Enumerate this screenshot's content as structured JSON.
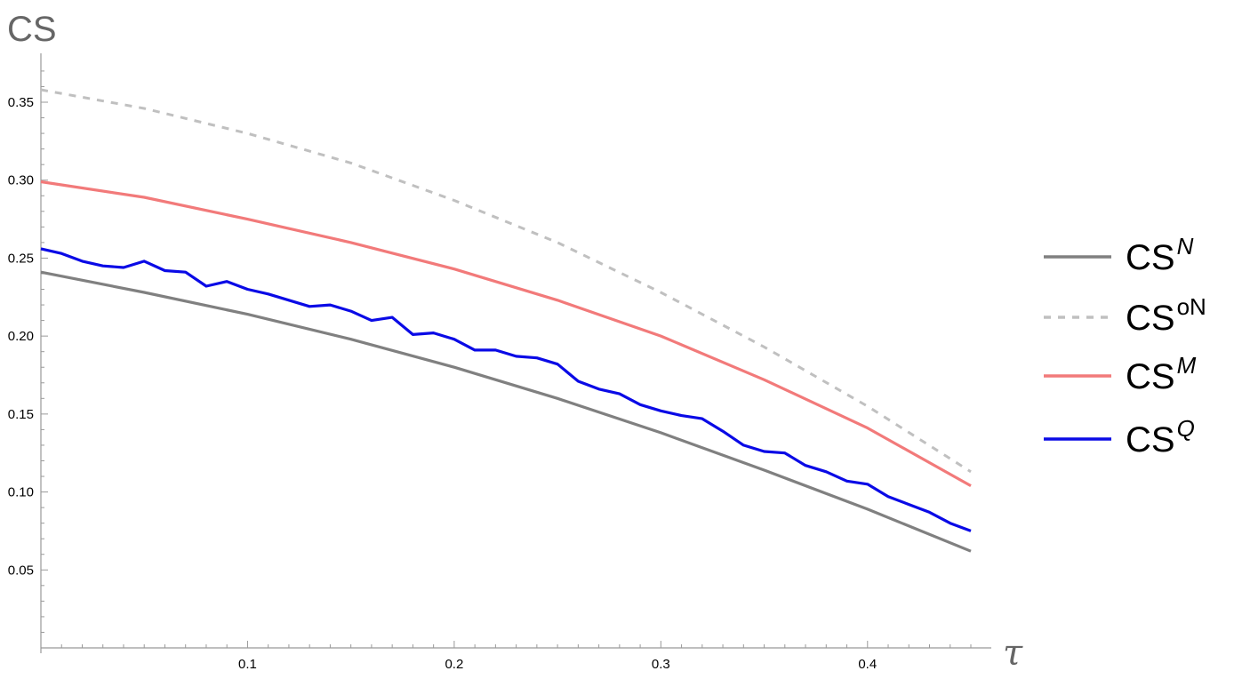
{
  "chart_data": {
    "type": "line",
    "ylabel": "CS",
    "xlabel": "τ",
    "xlim": [
      0,
      0.455
    ],
    "ylim": [
      0,
      0.375
    ],
    "x_ticks": [
      0.1,
      0.2,
      0.3,
      0.4
    ],
    "x_tick_labels": [
      "0.1",
      "0.2",
      "0.3",
      "0.4"
    ],
    "y_ticks": [
      0.05,
      0.1,
      0.15,
      0.2,
      0.25,
      0.3,
      0.35
    ],
    "y_tick_labels": [
      "0.05",
      "0.10",
      "0.15",
      "0.20",
      "0.25",
      "0.30",
      "0.35"
    ],
    "legend_position": "right",
    "grid": false,
    "series": [
      {
        "name": "CS",
        "sup": "N",
        "sup_italic": true,
        "color": "#808080",
        "dash": "none",
        "x": [
          0,
          0.05,
          0.1,
          0.15,
          0.2,
          0.25,
          0.3,
          0.35,
          0.4,
          0.45
        ],
        "y": [
          0.241,
          0.228,
          0.214,
          0.198,
          0.18,
          0.16,
          0.138,
          0.114,
          0.089,
          0.062
        ]
      },
      {
        "name": "CS",
        "sup": "oN",
        "sup_italic": false,
        "color": "#c0c0c0",
        "dash": "8,8",
        "x": [
          0,
          0.05,
          0.1,
          0.15,
          0.2,
          0.25,
          0.3,
          0.35,
          0.4,
          0.45
        ],
        "y": [
          0.358,
          0.346,
          0.33,
          0.311,
          0.287,
          0.26,
          0.228,
          0.193,
          0.155,
          0.113
        ]
      },
      {
        "name": "CS",
        "sup": "M",
        "sup_italic": true,
        "color": "#f27a7a",
        "dash": "none",
        "x": [
          0,
          0.05,
          0.1,
          0.15,
          0.2,
          0.25,
          0.3,
          0.35,
          0.4,
          0.45
        ],
        "y": [
          0.299,
          0.289,
          0.275,
          0.26,
          0.243,
          0.223,
          0.2,
          0.172,
          0.141,
          0.104
        ]
      },
      {
        "name": "CS",
        "sup": "Q",
        "sup_italic": true,
        "color": "#0a0ae6",
        "dash": "none",
        "x": [
          0,
          0.01,
          0.02,
          0.03,
          0.04,
          0.05,
          0.06,
          0.07,
          0.08,
          0.09,
          0.1,
          0.11,
          0.12,
          0.13,
          0.14,
          0.15,
          0.16,
          0.17,
          0.18,
          0.19,
          0.2,
          0.21,
          0.22,
          0.23,
          0.24,
          0.25,
          0.26,
          0.27,
          0.28,
          0.29,
          0.3,
          0.31,
          0.32,
          0.33,
          0.34,
          0.35,
          0.36,
          0.37,
          0.38,
          0.39,
          0.4,
          0.41,
          0.42,
          0.43,
          0.44,
          0.45
        ],
        "y": [
          0.256,
          0.253,
          0.248,
          0.245,
          0.244,
          0.248,
          0.242,
          0.241,
          0.232,
          0.235,
          0.23,
          0.227,
          0.223,
          0.219,
          0.22,
          0.216,
          0.21,
          0.212,
          0.201,
          0.202,
          0.198,
          0.191,
          0.191,
          0.187,
          0.186,
          0.182,
          0.171,
          0.166,
          0.163,
          0.156,
          0.152,
          0.149,
          0.147,
          0.139,
          0.13,
          0.126,
          0.125,
          0.117,
          0.113,
          0.107,
          0.105,
          0.097,
          0.092,
          0.087,
          0.08,
          0.075
        ]
      }
    ]
  }
}
